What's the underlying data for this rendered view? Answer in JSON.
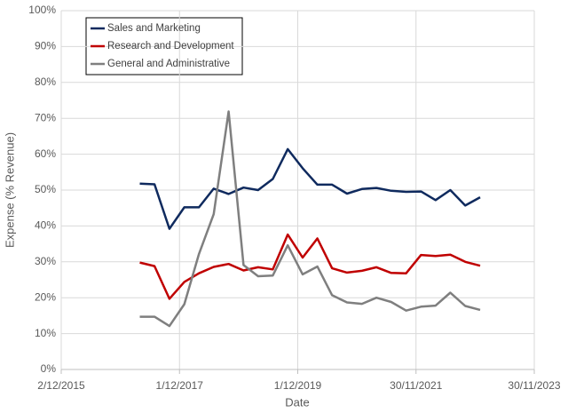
{
  "chart_data": {
    "type": "line",
    "x_label": "Date",
    "y_label": "Expense (% Revenue)",
    "x": [
      "2017-03-31",
      "2017-06-30",
      "2017-09-30",
      "2017-12-31",
      "2018-03-31",
      "2018-06-30",
      "2018-09-30",
      "2018-12-31",
      "2019-03-31",
      "2019-06-30",
      "2019-09-30",
      "2019-12-31",
      "2020-03-31",
      "2020-06-30",
      "2020-09-30",
      "2020-12-31",
      "2021-03-31",
      "2021-06-30",
      "2021-09-30",
      "2021-12-31",
      "2022-03-31",
      "2022-06-30",
      "2022-09-30",
      "2022-12-31"
    ],
    "series": [
      {
        "name": "Sales and Marketing",
        "color": "#0f2a5e",
        "values": [
          51.8,
          51.6,
          39.2,
          45.2,
          45.2,
          50.4,
          48.9,
          50.7,
          50.0,
          53.1,
          61.4,
          56.1,
          51.5,
          51.5,
          49.0,
          50.3,
          50.6,
          49.8,
          49.5,
          49.6,
          47.2,
          50.0,
          45.7,
          48.0
        ]
      },
      {
        "name": "Research and Development",
        "color": "#c00000",
        "values": [
          29.8,
          28.8,
          19.7,
          24.4,
          26.8,
          28.6,
          29.4,
          27.6,
          28.5,
          27.9,
          37.6,
          31.2,
          36.5,
          28.2,
          27.0,
          27.5,
          28.5,
          26.9,
          26.8,
          31.9,
          31.6,
          32.0,
          30.0,
          28.9
        ]
      },
      {
        "name": "General and Administrative",
        "color": "#7f7f7f",
        "values": [
          14.7,
          14.7,
          12.1,
          18.2,
          32.2,
          43.3,
          71.9,
          29.1,
          26.0,
          26.2,
          34.6,
          26.5,
          28.7,
          20.7,
          18.7,
          18.3,
          20.0,
          18.8,
          16.4,
          17.5,
          17.8,
          21.4,
          17.7,
          16.6
        ]
      }
    ],
    "xlim": [
      "2015-12-02",
      "2023-11-30"
    ],
    "xticks": [
      {
        "value": "2015-12-02",
        "label": "2/12/2015"
      },
      {
        "value": "2017-12-01",
        "label": "1/12/2017"
      },
      {
        "value": "2019-12-01",
        "label": "1/12/2019"
      },
      {
        "value": "2021-11-30",
        "label": "30/11/2021"
      },
      {
        "value": "2023-11-30",
        "label": "30/11/2023"
      }
    ],
    "ylim": [
      0,
      100
    ],
    "yticks": [
      {
        "value": 0,
        "label": "0%"
      },
      {
        "value": 10,
        "label": "10%"
      },
      {
        "value": 20,
        "label": "20%"
      },
      {
        "value": 30,
        "label": "30%"
      },
      {
        "value": 40,
        "label": "40%"
      },
      {
        "value": 50,
        "label": "50%"
      },
      {
        "value": 60,
        "label": "60%"
      },
      {
        "value": 70,
        "label": "70%"
      },
      {
        "value": 80,
        "label": "80%"
      },
      {
        "value": 90,
        "label": "90%"
      },
      {
        "value": 100,
        "label": "100%"
      }
    ],
    "grid": true,
    "legend": "top-left"
  }
}
